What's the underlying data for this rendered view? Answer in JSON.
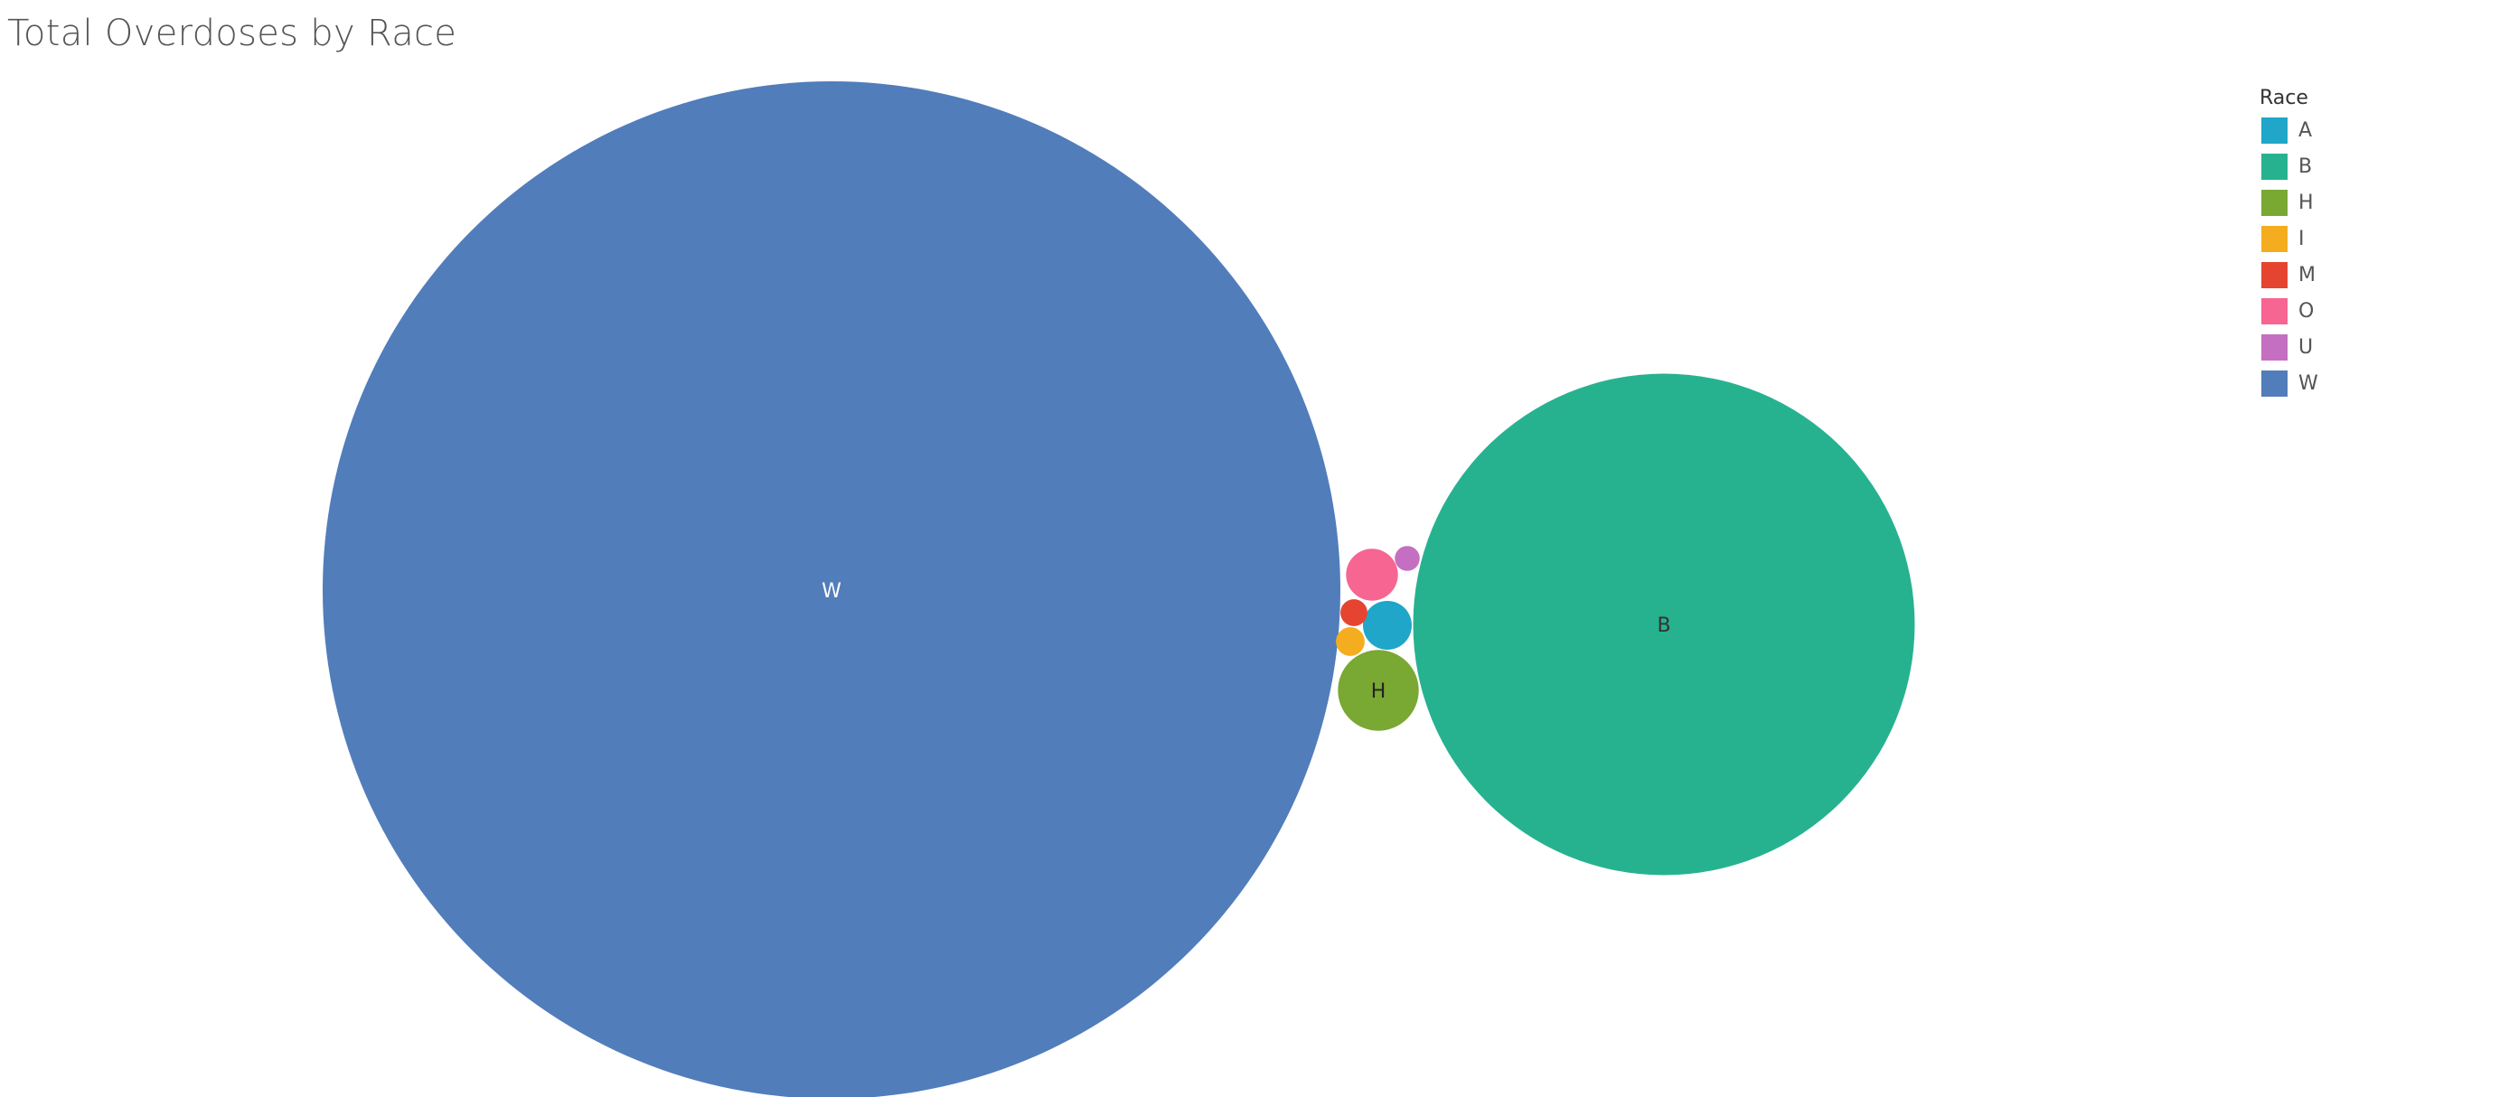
{
  "chart_data": {
    "type": "bubble",
    "title": "Total Overdoses by Race",
    "legend": {
      "title": "Race",
      "position": "top-right",
      "entries": [
        {
          "label": "A",
          "color": "#1fa6c9"
        },
        {
          "label": "B",
          "color": "#27b28f"
        },
        {
          "label": "H",
          "color": "#79a833"
        },
        {
          "label": "I",
          "color": "#f5ad20"
        },
        {
          "label": "M",
          "color": "#e54530"
        },
        {
          "label": "O",
          "color": "#f76592"
        },
        {
          "label": "U",
          "color": "#c56fc2"
        },
        {
          "label": "W",
          "color": "#517dbb"
        }
      ]
    },
    "bubbles": [
      {
        "category": "W",
        "relative_size": 1.0,
        "label": "W",
        "label_color": "#ffffff"
      },
      {
        "category": "B",
        "relative_size": 0.243,
        "label": "B",
        "label_color": "#333333"
      },
      {
        "category": "H",
        "relative_size": 0.0063,
        "label": "H",
        "label_color": "#222222"
      },
      {
        "category": "O",
        "relative_size": 0.0026,
        "label": "",
        "label_color": "#333333"
      },
      {
        "category": "A",
        "relative_size": 0.0023,
        "label": "",
        "label_color": "#333333"
      },
      {
        "category": "M",
        "relative_size": 0.0007,
        "label": "",
        "label_color": "#333333"
      },
      {
        "category": "I",
        "relative_size": 0.0008,
        "label": "",
        "label_color": "#333333"
      },
      {
        "category": "U",
        "relative_size": 0.0006,
        "label": "",
        "label_color": "#333333"
      }
    ]
  }
}
